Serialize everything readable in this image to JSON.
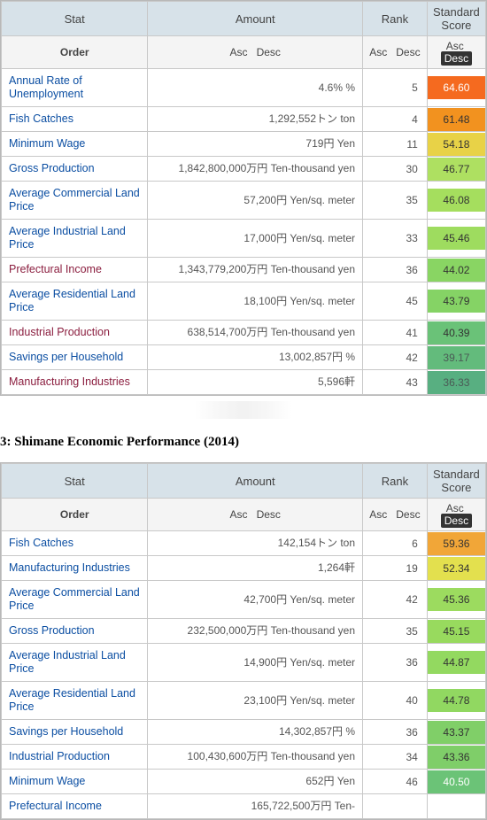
{
  "headers": {
    "stat": "Stat",
    "amount": "Amount",
    "rank": "Rank",
    "score": "Standard Score",
    "order": "Order",
    "asc": "Asc",
    "desc": "Desc"
  },
  "caption_between": "3: Shimane Economic Performance (2014)",
  "score_color_scale": {
    "64.60": "#f56a1f",
    "61.48": "#f2921f",
    "59.36": "#f1a638",
    "54.18": "#e8d247",
    "52.34": "#e3e04e",
    "46.77": "#aee061",
    "46.08": "#a5de5e",
    "45.46": "#9edc5f",
    "45.36": "#9cdb5f",
    "45.15": "#98da5e",
    "44.87": "#93d960",
    "44.78": "#91d861",
    "44.02": "#89d563",
    "43.79": "#85d365",
    "43.37": "#80cf68",
    "43.36": "#7fce69",
    "40.50": "#6bc377",
    "40.39": "#6ac278",
    "39.17": "#63bb7c",
    "36.33": "#58af81"
  },
  "table1": {
    "rows": [
      {
        "stat": "Annual Rate of Unemployment",
        "amount": "4.6% %",
        "rank": "5",
        "score": "64.60",
        "bg": "#f56a1f",
        "txt": "#fff"
      },
      {
        "stat": "Fish Catches",
        "amount": "1,292,552トン ton",
        "rank": "4",
        "score": "61.48",
        "bg": "#f2921f",
        "txt": "#333"
      },
      {
        "stat": "Minimum Wage",
        "amount": "719円 Yen",
        "rank": "11",
        "score": "54.18",
        "bg": "#e8d247",
        "txt": "#333"
      },
      {
        "stat": "Gross Production",
        "amount": "1,842,800,000万円 Ten-thousand yen",
        "rank": "30",
        "score": "46.77",
        "bg": "#aee061",
        "txt": "#333"
      },
      {
        "stat": "Average Commercial Land Price",
        "amount": "57,200円 Yen/sq. meter",
        "rank": "35",
        "score": "46.08",
        "bg": "#a5de5e",
        "txt": "#333"
      },
      {
        "stat": "Average Industrial Land Price",
        "amount": "17,000円 Yen/sq. meter",
        "rank": "33",
        "score": "45.46",
        "bg": "#9edc5f",
        "txt": "#333"
      },
      {
        "stat": "Prefectural Income",
        "amount": "1,343,779,200万円 Ten-thousand yen",
        "rank": "36",
        "score": "44.02",
        "bg": "#89d563",
        "txt": "#333",
        "alt": true
      },
      {
        "stat": "Average Residential Land Price",
        "amount": "18,100円 Yen/sq. meter",
        "rank": "45",
        "score": "43.79",
        "bg": "#85d365",
        "txt": "#333"
      },
      {
        "stat": "Industrial Production",
        "amount": "638,514,700万円 Ten-thousand yen",
        "rank": "41",
        "score": "40.39",
        "bg": "#6ac278",
        "txt": "#333",
        "alt": true
      },
      {
        "stat": "Savings per Household",
        "amount": "13,002,857円 %",
        "rank": "42",
        "score": "39.17",
        "bg": "#63bb7c",
        "txt": "#4a5a55"
      },
      {
        "stat": "Manufacturing Industries",
        "amount": "5,596軒",
        "rank": "43",
        "score": "36.33",
        "bg": "#58af81",
        "txt": "#4a5a55",
        "alt": true
      }
    ]
  },
  "table2": {
    "rows": [
      {
        "stat": "Fish Catches",
        "amount": "142,154トン ton",
        "rank": "6",
        "score": "59.36",
        "bg": "#f1a638",
        "txt": "#333"
      },
      {
        "stat": "Manufacturing Industries",
        "amount": "1,264軒",
        "rank": "19",
        "score": "52.34",
        "bg": "#e3e04e",
        "txt": "#333",
        "alt": true
      },
      {
        "stat": "Average Commercial Land Price",
        "amount": "42,700円 Yen/sq. meter",
        "rank": "42",
        "score": "45.36",
        "bg": "#9cdb5f",
        "txt": "#333"
      },
      {
        "stat": "Gross Production",
        "amount": "232,500,000万円 Ten-thousand yen",
        "rank": "35",
        "score": "45.15",
        "bg": "#98da5e",
        "txt": "#333"
      },
      {
        "stat": "Average Industrial Land Price",
        "amount": "14,900円 Yen/sq. meter",
        "rank": "36",
        "score": "44.87",
        "bg": "#93d960",
        "txt": "#333"
      },
      {
        "stat": "Average Residential Land Price",
        "amount": "23,100円 Yen/sq. meter",
        "rank": "40",
        "score": "44.78",
        "bg": "#91d861",
        "txt": "#333"
      },
      {
        "stat": "Savings per Household",
        "amount": "14,302,857円 %",
        "rank": "36",
        "score": "43.37",
        "bg": "#80cf68",
        "txt": "#333"
      },
      {
        "stat": "Industrial Production",
        "amount": "100,430,600万円 Ten-thousand yen",
        "rank": "34",
        "score": "43.36",
        "bg": "#7fce69",
        "txt": "#333",
        "alt": true
      },
      {
        "stat": "Minimum Wage",
        "amount": "652円 Yen",
        "rank": "46",
        "score": "40.50",
        "bg": "#6bc377",
        "txt": "#fff"
      },
      {
        "stat": "Prefectural Income",
        "amount": "165,722,500万円 Ten-",
        "rank": "",
        "score": "",
        "bg": "transparent",
        "txt": "#333",
        "alt": true,
        "partial": true
      }
    ]
  }
}
